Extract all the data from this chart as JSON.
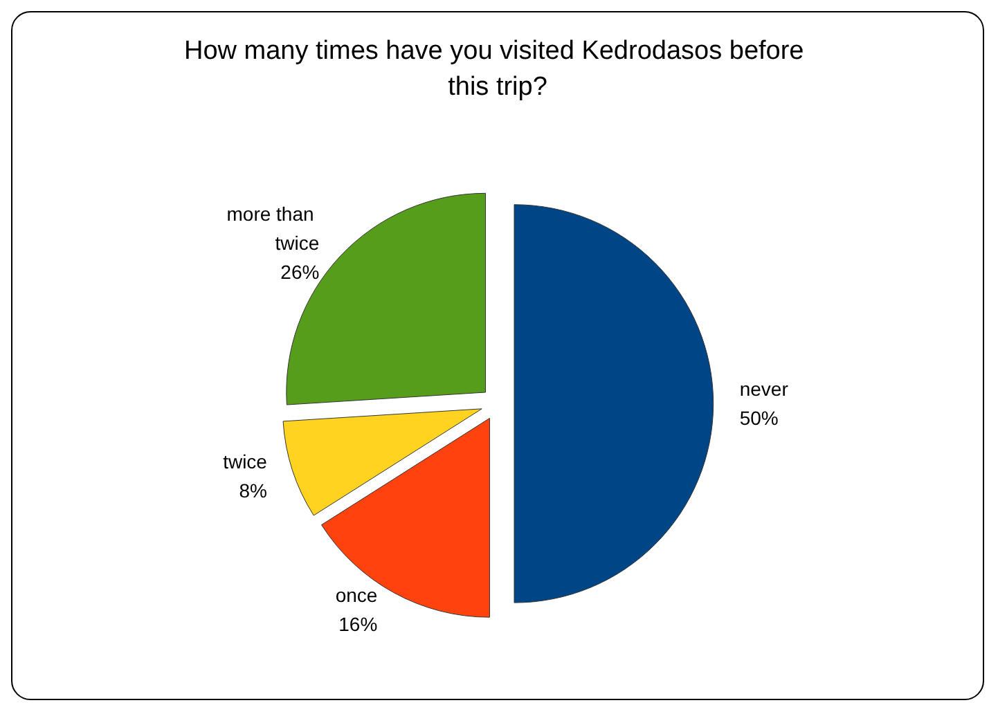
{
  "chart_data": {
    "type": "pie",
    "title": "How many times have you visited Kedrodasos before this trip?",
    "categories": [
      "never",
      "once",
      "twice",
      "more than twice"
    ],
    "values": [
      50,
      16,
      8,
      26
    ],
    "colors": [
      "#004586",
      "#ff420e",
      "#ffd320",
      "#579d1c"
    ],
    "value_labels": [
      "50%",
      "16%",
      "8%",
      "26%"
    ],
    "legend": false
  }
}
